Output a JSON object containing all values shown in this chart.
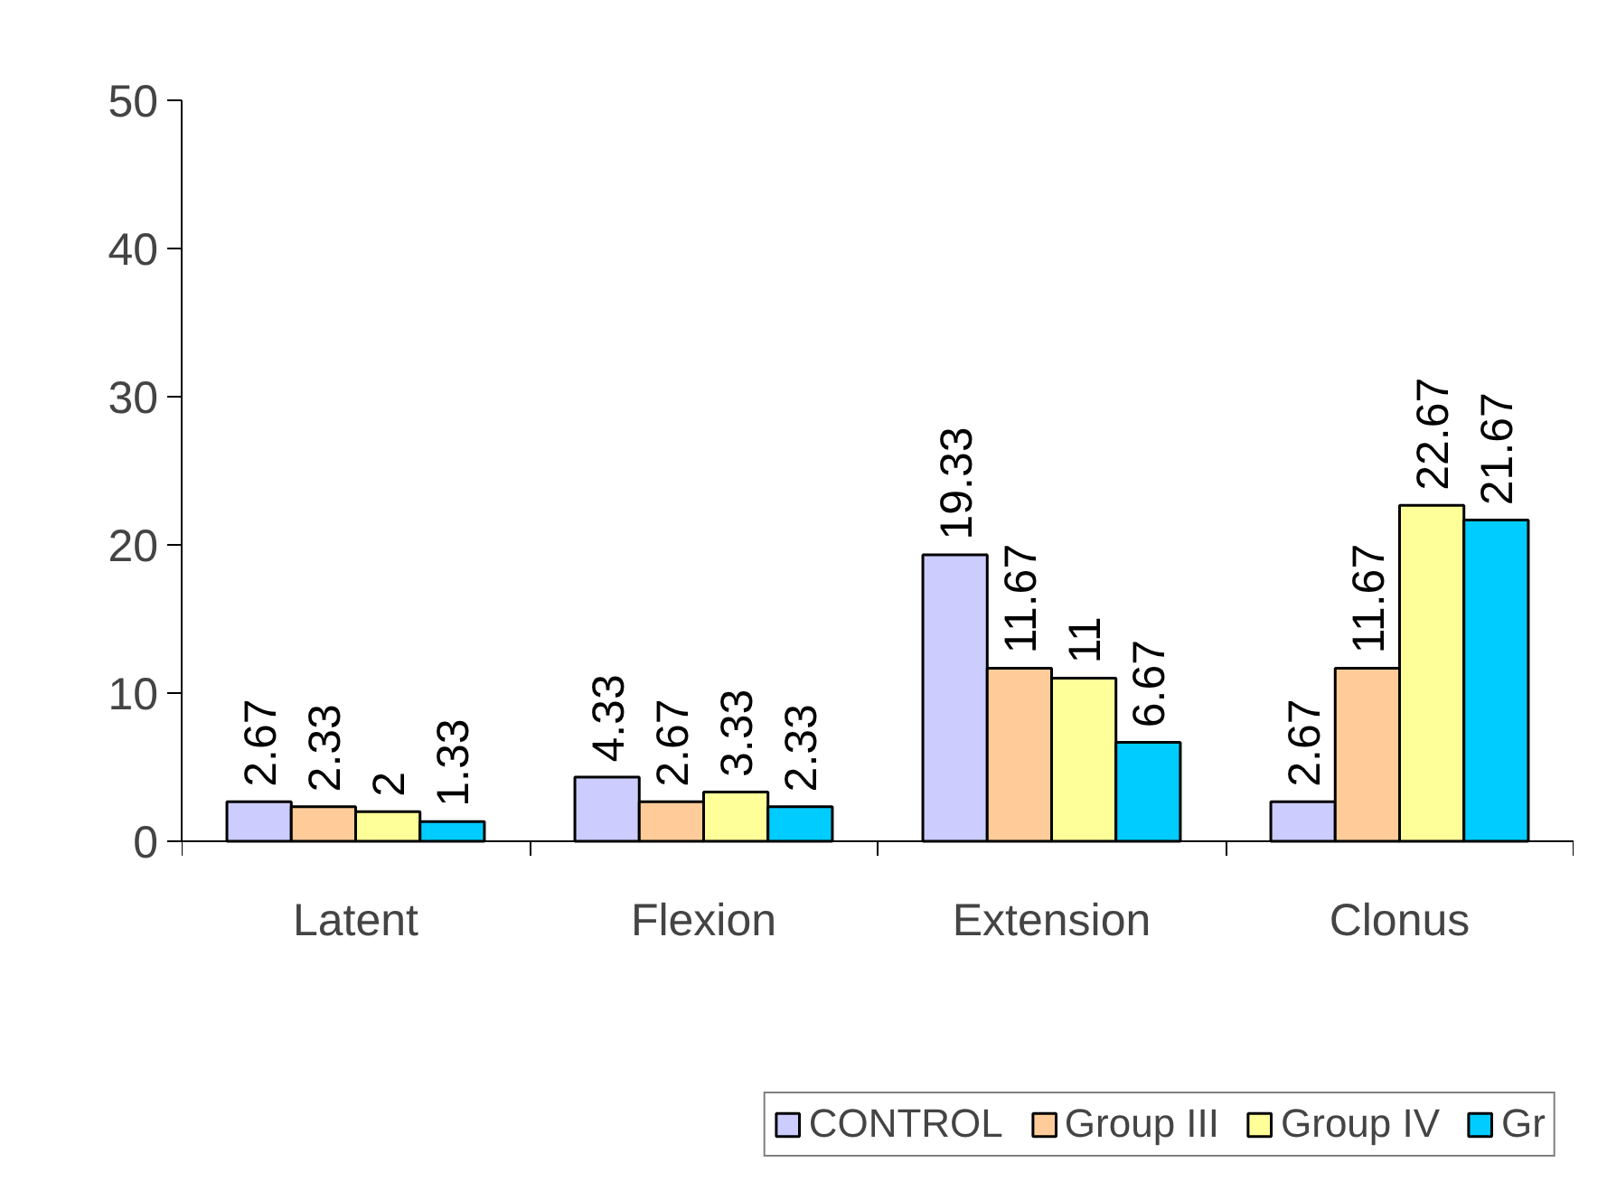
{
  "chart_data": {
    "type": "bar",
    "categories": [
      "Latent",
      "Flexion",
      "Extension",
      "Clonus"
    ],
    "series": [
      {
        "name": "CONTROL",
        "color": "#ccccff",
        "values": [
          2.67,
          4.33,
          19.33,
          2.67
        ]
      },
      {
        "name": "Group III",
        "color": "#ffcc99",
        "values": [
          2.33,
          2.67,
          11.67,
          11.67
        ]
      },
      {
        "name": "Group IV",
        "color": "#ffff99",
        "values": [
          2,
          3.33,
          11,
          22.67
        ]
      },
      {
        "name": "Gr",
        "color": "#00ccff",
        "values": [
          1.33,
          2.33,
          6.67,
          21.67
        ]
      }
    ],
    "ylim": [
      0,
      50
    ],
    "yticks": [
      0,
      10,
      20,
      30,
      40,
      50
    ],
    "grid": false,
    "legend": "bottom",
    "data_labels": true
  }
}
